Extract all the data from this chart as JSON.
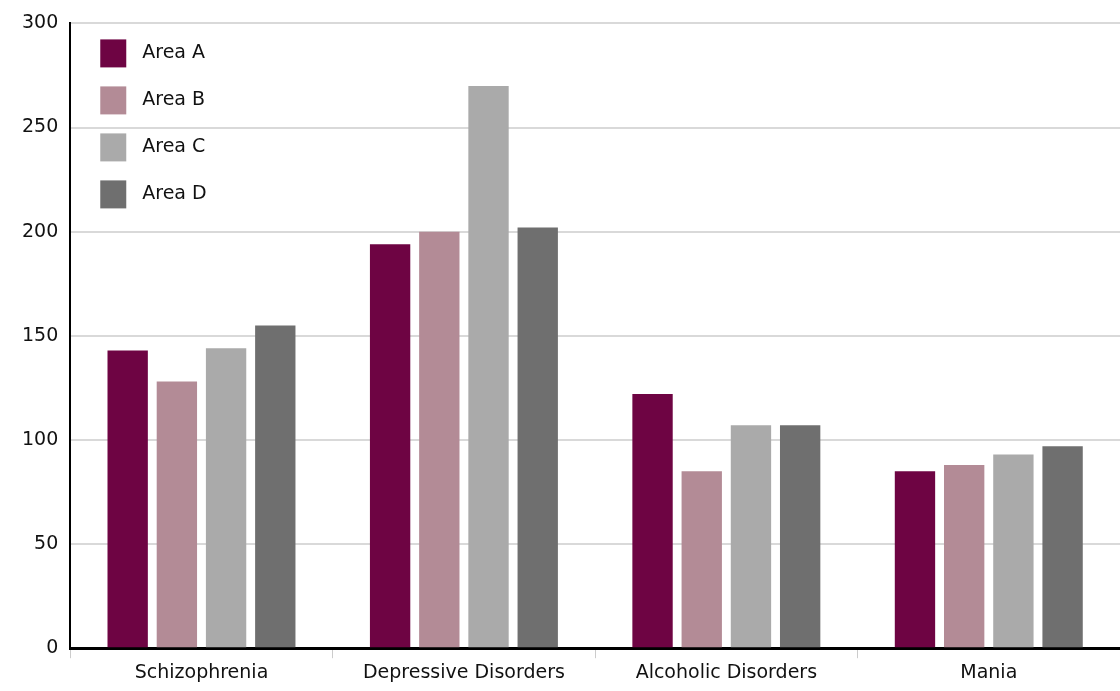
{
  "chart_data": {
    "type": "bar",
    "categories": [
      "Schizophrenia",
      "Depressive Disorders",
      "Alcoholic Disorders",
      "Mania"
    ],
    "series": [
      {
        "name": "Area A",
        "color": "#6e0443",
        "values": [
          143,
          194,
          122,
          85
        ]
      },
      {
        "name": "Area B",
        "color": "#b38b96",
        "values": [
          128,
          200,
          85,
          88
        ]
      },
      {
        "name": "Area C",
        "color": "#aaaaaa",
        "values": [
          144,
          270,
          107,
          93
        ]
      },
      {
        "name": "Area D",
        "color": "#6f6f6f",
        "values": [
          155,
          202,
          107,
          97
        ]
      }
    ],
    "ylim": [
      0,
      300
    ],
    "yticks": [
      0,
      50,
      100,
      150,
      200,
      250,
      300
    ],
    "grid": "y",
    "legend": "top left"
  }
}
